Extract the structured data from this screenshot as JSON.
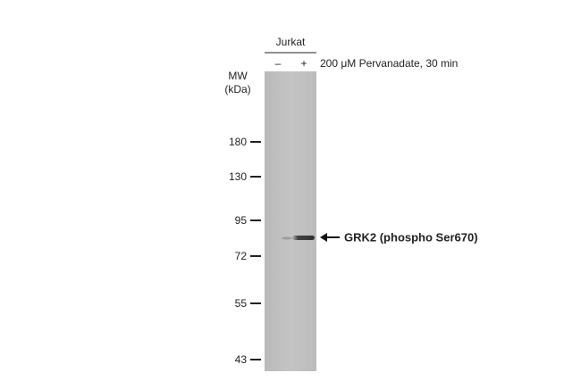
{
  "header": {
    "sample": "Jurkat",
    "lanes": [
      "–",
      "+"
    ],
    "treatment": "200 μM Pervanadate, 30 min"
  },
  "mw_label": {
    "line1": "MW",
    "line2": "(kDa)"
  },
  "markers": [
    "180",
    "130",
    "95",
    "72",
    "55",
    "43"
  ],
  "band_label": "GRK2 (phospho  Ser670)"
}
